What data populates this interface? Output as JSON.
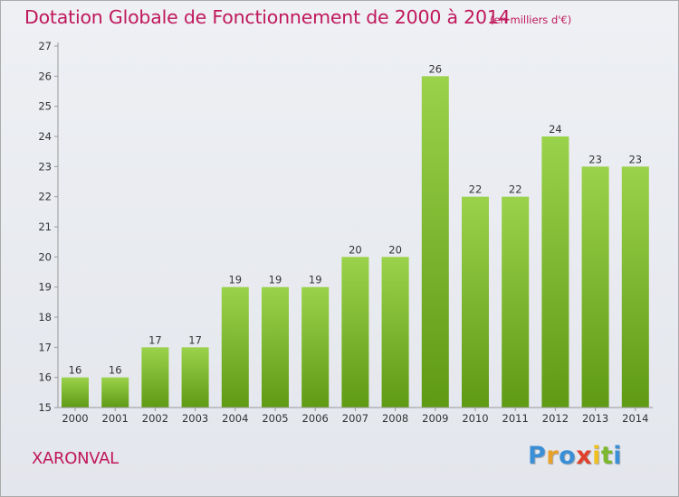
{
  "header": {
    "title": "Dotation Globale de Fonctionnement de 2000 à 2014",
    "unit": "(en milliers d'€)"
  },
  "footer": {
    "commune": "XARONVAL",
    "logo_text": "Proxiti"
  },
  "colors": {
    "title": "#c0185c",
    "bar_top": "#9ad24b",
    "bar_bottom": "#5f9a15",
    "logo_letters": [
      "#3a8fd6",
      "#e8a12b",
      "#3a8fd6",
      "#e0402a",
      "#f0c020",
      "#7bb82c",
      "#3a8fd6"
    ]
  },
  "chart_data": {
    "type": "bar",
    "categories": [
      "2000",
      "2001",
      "2002",
      "2003",
      "2004",
      "2005",
      "2006",
      "2007",
      "2008",
      "2009",
      "2010",
      "2011",
      "2012",
      "2013",
      "2014"
    ],
    "values": [
      16,
      16,
      17,
      17,
      19,
      19,
      19,
      20,
      20,
      26,
      22,
      22,
      24,
      23,
      23
    ],
    "title": "Dotation Globale de Fonctionnement de 2000 à 2014",
    "ylim": [
      15,
      27
    ],
    "yticks": [
      15,
      16,
      17,
      18,
      19,
      20,
      21,
      22,
      23,
      24,
      25,
      26,
      27
    ],
    "grid": false,
    "data_labels": true
  }
}
